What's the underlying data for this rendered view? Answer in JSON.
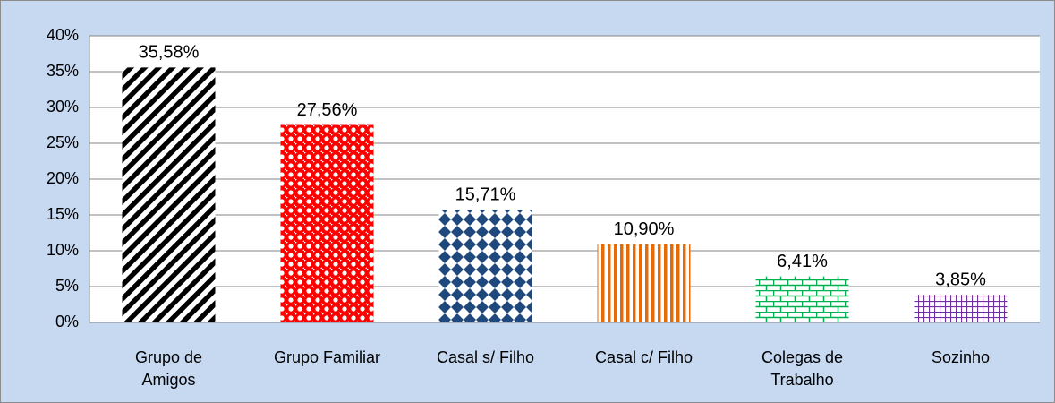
{
  "chart_data": {
    "type": "bar",
    "categories": [
      "Grupo de Amigos",
      "Grupo Familiar",
      "Casal s/ Filho",
      "Casal c/ Filho",
      "Colegas de Trabalho",
      "Sozinho"
    ],
    "values": [
      35.58,
      27.56,
      15.71,
      10.9,
      6.41,
      3.85
    ],
    "value_labels": [
      "35,58%",
      "27,56%",
      "15,71%",
      "10,90%",
      "6,41%",
      "3,85%"
    ],
    "colors": [
      "#000000",
      "#ff0000",
      "#1f497d",
      "#e36c09",
      "#00b050",
      "#7030a0"
    ],
    "ylim": [
      0,
      40
    ],
    "yticks": [
      {
        "value": 0,
        "label": "0%"
      },
      {
        "value": 5,
        "label": "5%"
      },
      {
        "value": 10,
        "label": "10%"
      },
      {
        "value": 15,
        "label": "15%"
      },
      {
        "value": 20,
        "label": "20%"
      },
      {
        "value": 25,
        "label": "25%"
      },
      {
        "value": 30,
        "label": "30%"
      },
      {
        "value": 35,
        "label": "35%"
      },
      {
        "value": 40,
        "label": "40%"
      }
    ],
    "grid": true
  }
}
